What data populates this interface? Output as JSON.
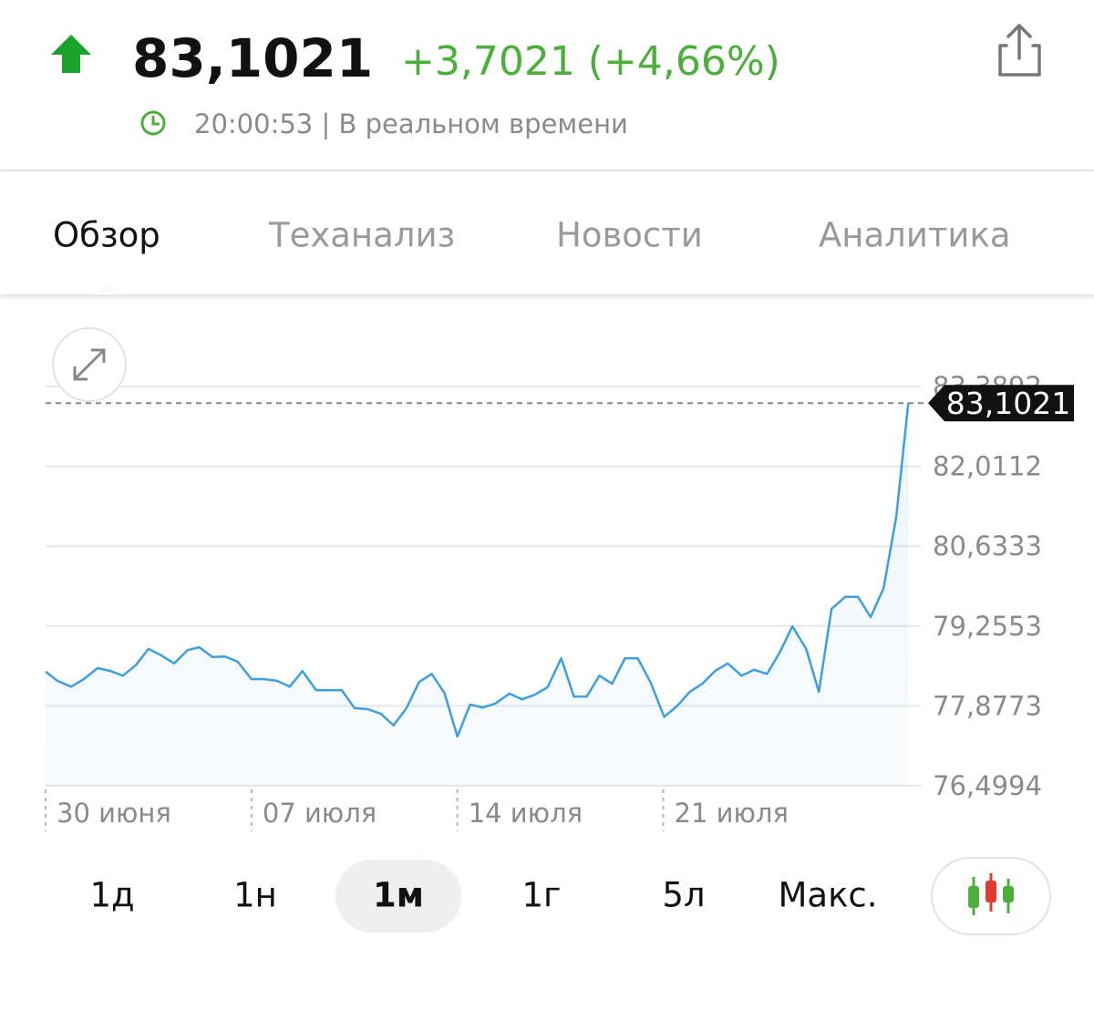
{
  "header": {
    "price": "83,1021",
    "change": "+3,7021 (+4,66%)",
    "time": "20:00:53 | В реальном времени"
  },
  "tabs": [
    "Обзор",
    "Теханализ",
    "Новости",
    "Аналитика"
  ],
  "ranges": [
    "1д",
    "1н",
    "1м",
    "1г",
    "5л",
    "Макс."
  ],
  "chart_data": {
    "type": "line",
    "x": [
      0,
      0.4,
      0.87,
      1.3,
      1.77,
      2.2,
      2.63,
      3.07,
      3.5,
      3.93,
      4.37,
      4.83,
      5.23,
      5.67,
      6.1,
      6.53,
      7.0,
      7.43,
      7.87,
      8.3,
      8.73,
      9.2,
      9.63,
      10.07,
      10.5,
      10.96,
      11.4,
      11.83,
      12.27,
      12.7,
      13.13,
      13.56,
      14.0,
      14.43,
      14.87,
      15.3,
      15.77,
      16.2,
      16.63,
      17.07,
      17.53,
      17.96,
      18.4,
      18.83,
      19.26,
      19.7,
      20.13,
      20.57,
      21.03,
      21.46,
      21.9,
      22.33,
      22.76,
      23.19,
      23.66,
      24.09,
      24.53,
      24.96,
      25.39,
      25.86,
      26.29,
      26.72,
      27.19,
      27.62,
      28.05,
      28.49,
      28.92,
      29.33
    ],
    "series": [
      {
        "color": "#3d9fdf",
        "values": [
          78.47,
          78.31,
          78.21,
          78.34,
          78.53,
          78.48,
          78.4,
          78.58,
          78.86,
          78.75,
          78.61,
          78.84,
          78.89,
          78.72,
          78.73,
          78.64,
          78.34,
          78.34,
          78.31,
          78.21,
          78.48,
          78.15,
          78.15,
          78.15,
          77.84,
          77.82,
          77.74,
          77.54,
          77.84,
          78.29,
          78.43,
          78.1,
          77.35,
          77.9,
          77.85,
          77.92,
          78.09,
          77.99,
          78.07,
          78.2,
          78.7,
          78.04,
          78.04,
          78.4,
          78.26,
          78.7,
          78.7,
          78.28,
          77.69,
          77.87,
          78.12,
          78.26,
          78.48,
          78.61,
          78.4,
          78.5,
          78.43,
          78.8,
          79.25,
          78.86,
          78.12,
          79.55,
          79.76,
          79.76,
          79.41,
          79.91,
          81.14,
          83.1021
        ]
      }
    ],
    "xlim": [
      0,
      29.6
    ],
    "xticks": [
      {
        "value": 0,
        "label": "30 июня"
      },
      {
        "value": 7,
        "label": "07 июля"
      },
      {
        "value": 14,
        "label": "14 июля"
      },
      {
        "value": 21,
        "label": "21 июля"
      }
    ],
    "ylim": [
      76.4994,
      83.3892
    ],
    "yticks": [
      {
        "value": 76.4994,
        "label": "76,4994"
      },
      {
        "value": 77.8773,
        "label": "77,8773"
      },
      {
        "value": 79.2553,
        "label": "79,2553"
      },
      {
        "value": 80.6333,
        "label": "80,6333"
      },
      {
        "value": 82.0112,
        "label": "82,0112"
      },
      {
        "value": 83.3892,
        "label": "83,3892"
      }
    ],
    "current": {
      "value": 83.1021,
      "label": "83,1021"
    },
    "grid": true
  }
}
